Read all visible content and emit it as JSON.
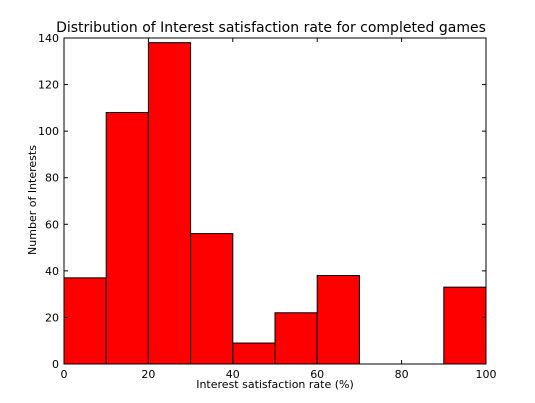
{
  "chart_data": {
    "type": "bar",
    "title": "Distribution of Interest satisfaction rate for completed games",
    "xlabel": "Interest satisfaction rate (%)",
    "ylabel": "Number of Interests",
    "xlim": [
      0,
      100
    ],
    "ylim": [
      0,
      140
    ],
    "x_ticks": [
      0,
      20,
      40,
      60,
      80,
      100
    ],
    "y_ticks": [
      0,
      20,
      40,
      60,
      80,
      100,
      120,
      140
    ],
    "bin_edges": [
      0,
      10,
      20,
      30,
      40,
      50,
      60,
      70,
      80,
      90,
      100
    ],
    "values": [
      37,
      108,
      138,
      56,
      9,
      22,
      38,
      0,
      0,
      33
    ],
    "bar_color": "#ff0000",
    "edge_color": "#000000",
    "grid": false
  }
}
